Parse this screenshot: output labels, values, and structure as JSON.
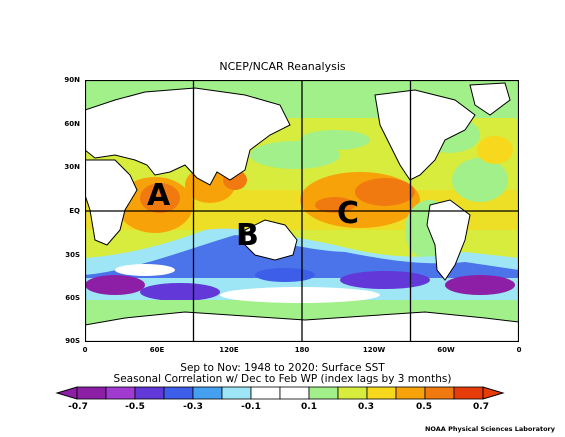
{
  "header": {
    "title": "NCEP/NCAR Reanalysis"
  },
  "axes": {
    "lat_labels": [
      "90N",
      "60N",
      "30N",
      "EQ",
      "30S",
      "60S",
      "90S"
    ],
    "lon_labels": [
      "0",
      "60E",
      "120E",
      "180",
      "120W",
      "60W",
      "0"
    ]
  },
  "caption": {
    "line1": "Sep to Nov: 1948 to 2020: Surface SST",
    "line2": "Seasonal Correlation w/ Dec to Feb WP (index lags by 3 months)"
  },
  "colorbar": {
    "labels": [
      "-0.7",
      "-0.5",
      "-0.3",
      "-0.1",
      "0.1",
      "0.3",
      "0.5",
      "0.7"
    ],
    "colors": [
      "#8c1fa6",
      "#a03ad0",
      "#6238d8",
      "#3c5ee8",
      "#46a0f0",
      "#9ee6f6",
      "#ffffff",
      "#ffffff",
      "#a2f08a",
      "#d7ec3c",
      "#f7d81c",
      "#f8a20a",
      "#f07a10",
      "#e63c0a"
    ]
  },
  "regions": {
    "a": "A",
    "b": "B",
    "c": "C"
  },
  "credit": "NOAA Physical Sciences Laboratory",
  "map_colors": {
    "ocean_base": "#d7ec3c",
    "green": "#a2f08a",
    "yellow": "#f7d81c",
    "orange": "#f8a20a",
    "dark_orange": "#f07a10",
    "cyan": "#9ee6f6",
    "blue": "#3c5ee8",
    "purple": "#8c1fa6",
    "land": "#ffffff"
  }
}
